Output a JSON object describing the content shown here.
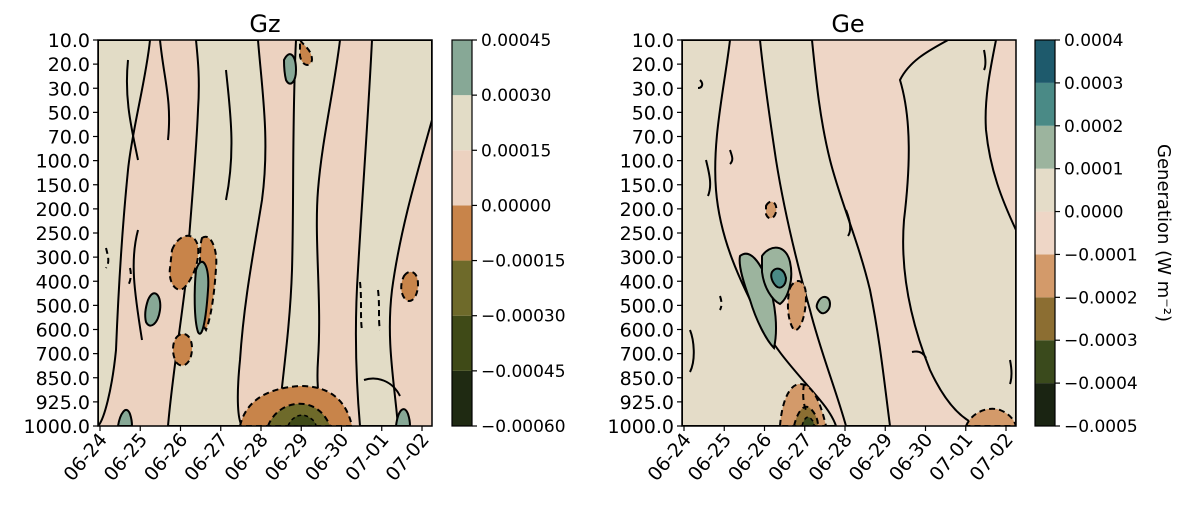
{
  "chart_data": [
    {
      "type": "heatmap",
      "title": "Gz",
      "x": [
        "06-24",
        "06-25",
        "06-26",
        "06-27",
        "06-28",
        "06-29",
        "06-30",
        "07-01",
        "07-02"
      ],
      "y": [
        "10.0",
        "20.0",
        "30.0",
        "50.0",
        "70.0",
        "100.0",
        "150.0",
        "200.0",
        "250.0",
        "300.0",
        "400.0",
        "500.0",
        "600.0",
        "700.0",
        "850.0",
        "925.0",
        "1000.0"
      ],
      "y_inverted": true,
      "colorbar_levels": [
        -0.0006,
        -0.00045,
        -0.0003,
        -0.00015,
        0.0,
        0.00015,
        0.0003,
        0.00045
      ],
      "colorbar_tick_labels": [
        "−0.00060",
        "−0.00045",
        "−0.00030",
        "−0.00015",
        "0.00000",
        "0.00015",
        "0.00030",
        "0.00045"
      ],
      "colorbar_colors": [
        "#1f2a12",
        "#3f4a17",
        "#6e6a2a",
        "#c8844a",
        "#ecd2c0",
        "#e2dcc6",
        "#87a896",
        "#2a6e78"
      ],
      "colorbar_label": "",
      "contour_lines": true,
      "negative_contours_dashed": true,
      "grid": false
    },
    {
      "type": "heatmap",
      "title": "Ge",
      "x": [
        "06-24",
        "06-25",
        "06-26",
        "06-27",
        "06-28",
        "06-29",
        "06-30",
        "07-01",
        "07-02"
      ],
      "y": [
        "10.0",
        "20.0",
        "30.0",
        "50.0",
        "70.0",
        "100.0",
        "150.0",
        "200.0",
        "250.0",
        "300.0",
        "400.0",
        "500.0",
        "600.0",
        "700.0",
        "850.0",
        "925.0",
        "1000.0"
      ],
      "y_inverted": true,
      "colorbar_levels": [
        -0.0005,
        -0.0004,
        -0.0003,
        -0.0002,
        -0.0001,
        0.0,
        0.0001,
        0.0002,
        0.0003,
        0.0004
      ],
      "colorbar_tick_labels": [
        "−0.0005",
        "−0.0004",
        "−0.0003",
        "−0.0002",
        "−0.0001",
        "0.0000",
        "0.0001",
        "0.0002",
        "0.0003",
        "0.0004"
      ],
      "colorbar_colors": [
        "#1a2412",
        "#3a4a1c",
        "#8c6e32",
        "#d39a6a",
        "#eed6c6",
        "#e4dcc8",
        "#9cb49e",
        "#4a8a86",
        "#1e5a6c"
      ],
      "colorbar_label": "Generation  (W m⁻²)",
      "contour_lines": true,
      "negative_contours_dashed": true,
      "grid": false
    }
  ]
}
